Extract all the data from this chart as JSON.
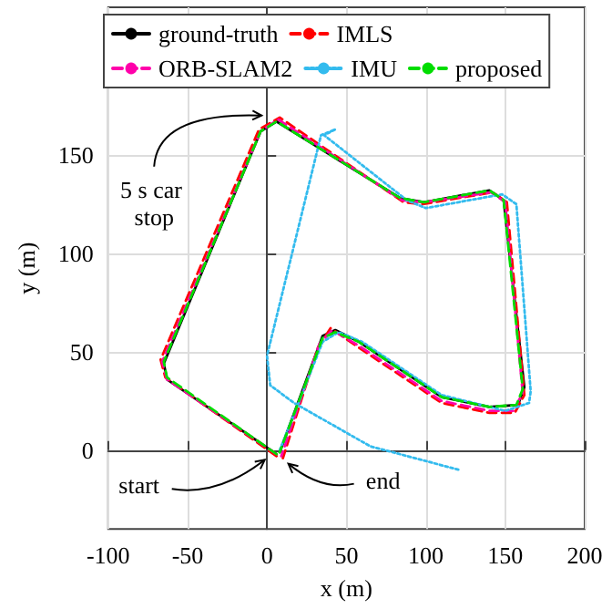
{
  "chart_data": {
    "type": "line",
    "xlabel": "x (m)",
    "ylabel": "y (m)",
    "xlim": [
      -100,
      200
    ],
    "xticks": [
      -100,
      -50,
      0,
      50,
      100,
      150,
      200
    ],
    "ylim": [
      -40,
      225
    ],
    "yticks": [
      0,
      50,
      100,
      150
    ],
    "grid": true,
    "legend": "top",
    "marker": "none",
    "annotations": [
      {
        "text": "5 s car stop",
        "x": 0,
        "y": 170
      },
      {
        "text": "start",
        "x": 2,
        "y": -3
      },
      {
        "text": "end",
        "x": 10,
        "y": -5
      }
    ],
    "series": [
      {
        "name": "ground-truth",
        "color": "#000000",
        "line_style": "solid",
        "x": [
          6,
          -63,
          -65,
          -4,
          6,
          84,
          99,
          140,
          149,
          162,
          158,
          140,
          110,
          58,
          43,
          35,
          8
        ],
        "values": [
          -2,
          36,
          44,
          162,
          167,
          128,
          126,
          132,
          127,
          32,
          23,
          22,
          27,
          55,
          61,
          58,
          -1
        ]
      },
      {
        "name": "IMLS",
        "color": "#ff0000",
        "line_style": "dashed",
        "x": [
          6,
          -64,
          -67,
          -5,
          8,
          86,
          98,
          142,
          151,
          162,
          156,
          140,
          110,
          58,
          40,
          32,
          10
        ],
        "values": [
          -3,
          37,
          46,
          163,
          169,
          126,
          125,
          131,
          126,
          28,
          19,
          19,
          24,
          52,
          62,
          52,
          -4
        ]
      },
      {
        "name": "ORB-SLAM2",
        "color": "#ff00aa",
        "line_style": "dashed",
        "x": [
          6,
          -63,
          -66,
          -4,
          7,
          85,
          99,
          141,
          150,
          161,
          155,
          140,
          110,
          58,
          41,
          33,
          9
        ],
        "values": [
          -2,
          36,
          45,
          162,
          168,
          127,
          126,
          131,
          126,
          29,
          20,
          20,
          25,
          53,
          61,
          54,
          -3
        ]
      },
      {
        "name": "IMU",
        "color": "#33bbee",
        "line_style": "dotted",
        "x": [
          8,
          35,
          45,
          60,
          110,
          150,
          165,
          166,
          157,
          148,
          100,
          88,
          36,
          43,
          34,
          0,
          2,
          17,
          65,
          121
        ],
        "values": [
          0,
          55,
          60,
          55,
          28,
          20,
          24,
          30,
          125,
          130,
          123,
          127,
          160,
          163,
          160,
          48,
          33,
          24,
          2,
          -10
        ]
      },
      {
        "name": "proposed",
        "color": "#00dd00",
        "line_style": "dashed",
        "x": [
          6,
          -63,
          -65,
          -4,
          6,
          84,
          99,
          140,
          149,
          161,
          157,
          140,
          110,
          58,
          43,
          35,
          8
        ],
        "values": [
          -2,
          37,
          45,
          162,
          167,
          128,
          126,
          132,
          127,
          31,
          23,
          22,
          27,
          55,
          60,
          57,
          -1
        ]
      }
    ]
  }
}
